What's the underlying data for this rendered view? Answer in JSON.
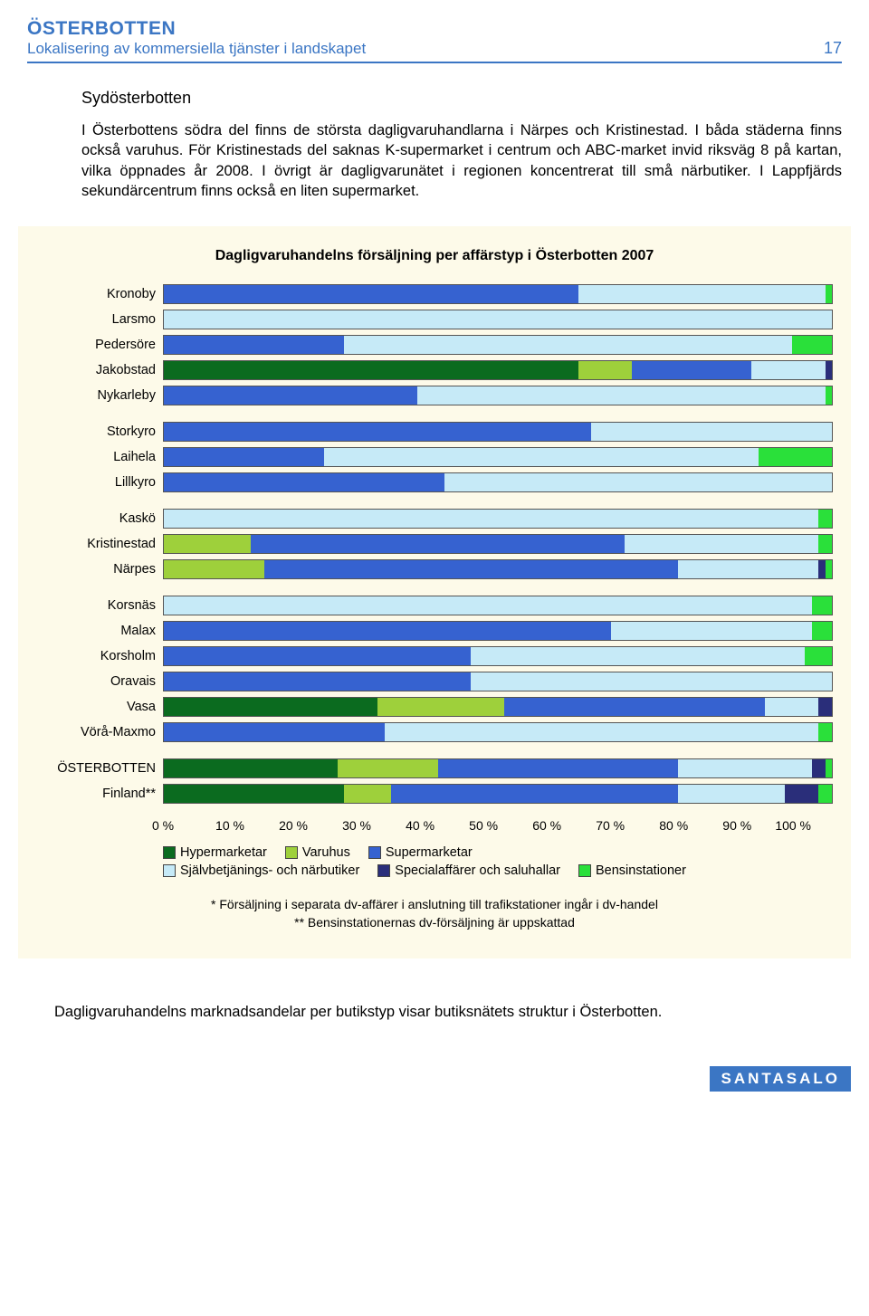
{
  "header": {
    "title": "ÖSTERBOTTEN",
    "subtitle": "Lokalisering av kommersiella tjänster i landskapet",
    "page_number": "17"
  },
  "section_title": "Sydösterbotten",
  "body_text": "I Österbottens södra del finns de största dagligvaruhandlarna i Närpes och Kristinestad. I båda städerna finns också varuhus. För Kristinestads del saknas K-supermarket i centrum och ABC-market invid riksväg 8 på kartan, vilka öppnades år 2008. I övrigt är dagligvarunätet i regionen koncentrerat till små närbutiker. I Lappfjärds sekundärcentrum finns också en liten supermarket.",
  "chart": {
    "title": "Dagligvaruhandelns försäljning per affärstyp i Österbotten 2007",
    "categories_order": [
      "hyper",
      "varuhus",
      "super",
      "narbutik",
      "special",
      "bensin"
    ],
    "colors": {
      "hyper": "#0b6b1f",
      "varuhus": "#9ed03b",
      "super": "#3662d0",
      "narbutik": "#c6eaf7",
      "special": "#2a2e7a",
      "bensin": "#2ae03a"
    },
    "groups": [
      {
        "rows": [
          {
            "label": "Kronoby",
            "values": {
              "hyper": 0,
              "varuhus": 0,
              "super": 62,
              "narbutik": 37,
              "special": 0,
              "bensin": 1
            }
          },
          {
            "label": "Larsmo",
            "values": {
              "hyper": 0,
              "varuhus": 0,
              "super": 0,
              "narbutik": 100,
              "special": 0,
              "bensin": 0
            }
          },
          {
            "label": "Pedersöre",
            "values": {
              "hyper": 0,
              "varuhus": 0,
              "super": 27,
              "narbutik": 67,
              "special": 0,
              "bensin": 6
            }
          },
          {
            "label": "Jakobstad",
            "values": {
              "hyper": 62,
              "varuhus": 8,
              "super": 18,
              "narbutik": 11,
              "special": 1,
              "bensin": 0
            }
          },
          {
            "label": "Nykarleby",
            "values": {
              "hyper": 0,
              "varuhus": 0,
              "super": 38,
              "narbutik": 61,
              "special": 0,
              "bensin": 1
            }
          }
        ]
      },
      {
        "rows": [
          {
            "label": "Storkyro",
            "values": {
              "hyper": 0,
              "varuhus": 0,
              "super": 64,
              "narbutik": 36,
              "special": 0,
              "bensin": 0
            }
          },
          {
            "label": "Laihela",
            "values": {
              "hyper": 0,
              "varuhus": 0,
              "super": 24,
              "narbutik": 65,
              "special": 0,
              "bensin": 11
            }
          },
          {
            "label": "Lillkyro",
            "values": {
              "hyper": 0,
              "varuhus": 0,
              "super": 42,
              "narbutik": 58,
              "special": 0,
              "bensin": 0
            }
          }
        ]
      },
      {
        "rows": [
          {
            "label": "Kaskö",
            "values": {
              "hyper": 0,
              "varuhus": 0,
              "super": 0,
              "narbutik": 98,
              "special": 0,
              "bensin": 2
            }
          },
          {
            "label": "Kristinestad",
            "values": {
              "hyper": 0,
              "varuhus": 13,
              "super": 56,
              "narbutik": 29,
              "special": 0,
              "bensin": 2
            }
          },
          {
            "label": "Närpes",
            "values": {
              "hyper": 0,
              "varuhus": 15,
              "super": 62,
              "narbutik": 21,
              "special": 1,
              "bensin": 1
            }
          }
        ]
      },
      {
        "rows": [
          {
            "label": "Korsnäs",
            "values": {
              "hyper": 0,
              "varuhus": 0,
              "super": 0,
              "narbutik": 97,
              "special": 0,
              "bensin": 3
            }
          },
          {
            "label": "Malax",
            "values": {
              "hyper": 0,
              "varuhus": 0,
              "super": 67,
              "narbutik": 30,
              "special": 0,
              "bensin": 3
            }
          },
          {
            "label": "Korsholm",
            "values": {
              "hyper": 0,
              "varuhus": 0,
              "super": 46,
              "narbutik": 50,
              "special": 0,
              "bensin": 4
            }
          },
          {
            "label": "Oravais",
            "values": {
              "hyper": 0,
              "varuhus": 0,
              "super": 46,
              "narbutik": 54,
              "special": 0,
              "bensin": 0
            }
          },
          {
            "label": "Vasa",
            "values": {
              "hyper": 32,
              "varuhus": 19,
              "super": 39,
              "narbutik": 8,
              "special": 2,
              "bensin": 0
            }
          },
          {
            "label": "Vörå-Maxmo",
            "values": {
              "hyper": 0,
              "varuhus": 0,
              "super": 33,
              "narbutik": 65,
              "special": 0,
              "bensin": 2
            }
          }
        ]
      },
      {
        "rows": [
          {
            "label": "ÖSTERBOTTEN",
            "values": {
              "hyper": 26,
              "varuhus": 15,
              "super": 36,
              "narbutik": 20,
              "special": 2,
              "bensin": 1
            }
          },
          {
            "label": "Finland**",
            "values": {
              "hyper": 27,
              "varuhus": 7,
              "super": 43,
              "narbutik": 16,
              "special": 5,
              "bensin": 2
            }
          }
        ]
      }
    ],
    "x_ticks": [
      "0 %",
      "10 %",
      "20 %",
      "30 %",
      "40 %",
      "50 %",
      "60 %",
      "70 %",
      "80 %",
      "90 %",
      "100 %"
    ],
    "legend_rows": [
      [
        {
          "key": "hyper",
          "label": "Hypermarketar"
        },
        {
          "key": "varuhus",
          "label": "Varuhus"
        },
        {
          "key": "super",
          "label": "Supermarketar"
        }
      ],
      [
        {
          "key": "narbutik",
          "label": "Självbetjänings- och närbutiker"
        },
        {
          "key": "special",
          "label": "Specialaffärer och saluhallar"
        },
        {
          "key": "bensin",
          "label": "Bensinstationer"
        }
      ]
    ],
    "footnote1": "* Försäljning i separata dv-affärer i anslutning till trafikstationer ingår i dv-handel",
    "footnote2": "** Bensinstationernas dv-försäljning är uppskattad"
  },
  "caption": "Dagligvaruhandelns marknadsandelar per butikstyp visar butiksnätets struktur i Österbotten.",
  "footer_logo": "SANTASALO"
}
